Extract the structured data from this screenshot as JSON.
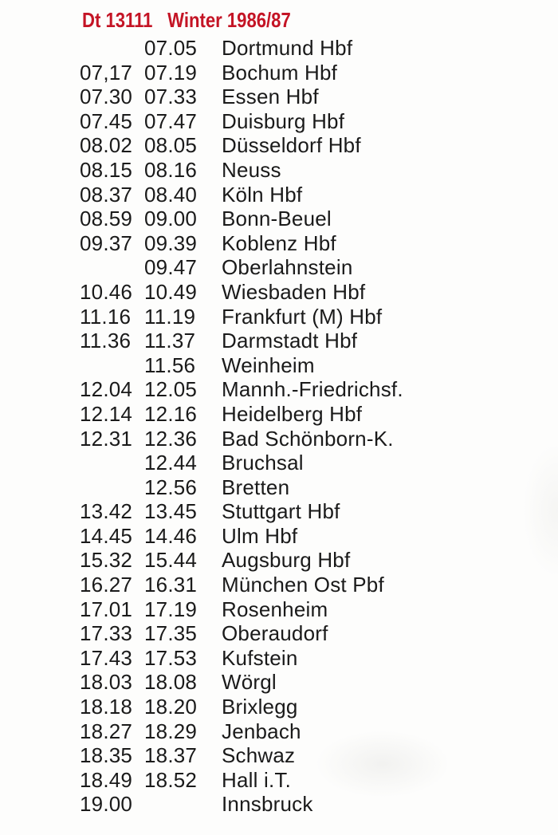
{
  "header": {
    "train_number": "Dt 13111",
    "season": "Winter 1986/87"
  },
  "colors": {
    "header_red": "#c41425",
    "text": "#1a1a1a",
    "background": "#fdfdfc"
  },
  "timetable": {
    "columns": [
      "arrival",
      "departure",
      "station"
    ],
    "rows": [
      {
        "arr": "",
        "dep": "07.05",
        "station": "Dortmund Hbf"
      },
      {
        "arr": "07,17",
        "dep": "07.19",
        "station": "Bochum Hbf"
      },
      {
        "arr": "07.30",
        "dep": "07.33",
        "station": "Essen Hbf"
      },
      {
        "arr": "07.45",
        "dep": "07.47",
        "station": "Duisburg Hbf"
      },
      {
        "arr": "08.02",
        "dep": "08.05",
        "station": "Düsseldorf Hbf"
      },
      {
        "arr": "08.15",
        "dep": "08.16",
        "station": "Neuss"
      },
      {
        "arr": "08.37",
        "dep": "08.40",
        "station": "Köln Hbf"
      },
      {
        "arr": "08.59",
        "dep": "09.00",
        "station": "Bonn-Beuel"
      },
      {
        "arr": "09.37",
        "dep": "09.39",
        "station": "Koblenz Hbf"
      },
      {
        "arr": "",
        "dep": "09.47",
        "station": "Oberlahnstein"
      },
      {
        "arr": "10.46",
        "dep": "10.49",
        "station": "Wiesbaden Hbf"
      },
      {
        "arr": "11.16",
        "dep": "11.19",
        "station": "Frankfurt (M) Hbf"
      },
      {
        "arr": "11.36",
        "dep": "11.37",
        "station": "Darmstadt Hbf"
      },
      {
        "arr": "",
        "dep": "11.56",
        "station": "Weinheim"
      },
      {
        "arr": "12.04",
        "dep": "12.05",
        "station": "Mannh.-Friedrichsf."
      },
      {
        "arr": "12.14",
        "dep": "12.16",
        "station": "Heidelberg Hbf"
      },
      {
        "arr": "12.31",
        "dep": "12.36",
        "station": "Bad Schönborn-K."
      },
      {
        "arr": "",
        "dep": "12.44",
        "station": "Bruchsal"
      },
      {
        "arr": "",
        "dep": "12.56",
        "station": "Bretten"
      },
      {
        "arr": "13.42",
        "dep": "13.45",
        "station": "Stuttgart Hbf"
      },
      {
        "arr": "14.45",
        "dep": "14.46",
        "station": "Ulm Hbf"
      },
      {
        "arr": "15.32",
        "dep": "15.44",
        "station": "Augsburg Hbf"
      },
      {
        "arr": "16.27",
        "dep": "16.31",
        "station": "München Ost Pbf"
      },
      {
        "arr": "17.01",
        "dep": "17.19",
        "station": "Rosenheim"
      },
      {
        "arr": "17.33",
        "dep": "17.35",
        "station": "Oberaudorf"
      },
      {
        "arr": "17.43",
        "dep": "17.53",
        "station": "Kufstein"
      },
      {
        "arr": "18.03",
        "dep": "18.08",
        "station": "Wörgl"
      },
      {
        "arr": "18.18",
        "dep": "18.20",
        "station": "Brixlegg"
      },
      {
        "arr": "18.27",
        "dep": "18.29",
        "station": "Jenbach"
      },
      {
        "arr": "18.35",
        "dep": "18.37",
        "station": "Schwaz"
      },
      {
        "arr": "18.49",
        "dep": "18.52",
        "station": "Hall i.T."
      },
      {
        "arr": "19.00",
        "dep": "",
        "station": "Innsbruck"
      }
    ]
  }
}
